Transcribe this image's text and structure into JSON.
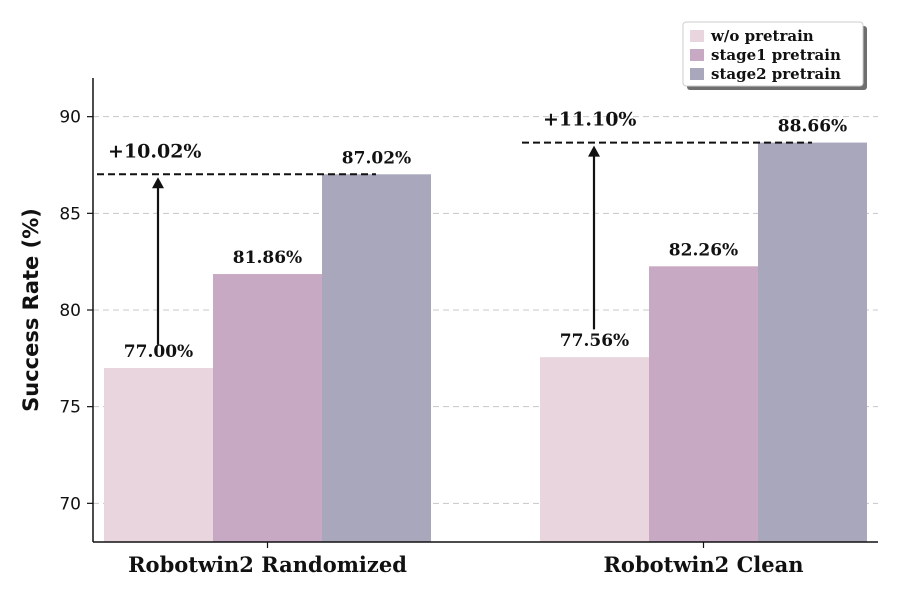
{
  "chart_data": {
    "type": "bar",
    "categories": [
      "Robotwin2 Randomized",
      "Robotwin2 Clean"
    ],
    "series": [
      {
        "name": "w/o pretrain",
        "values": [
          77.0,
          77.56
        ],
        "labels": [
          "77.00%",
          "77.56%"
        ],
        "color": "#e8d5de"
      },
      {
        "name": "stage1 pretrain",
        "values": [
          81.86,
          82.26
        ],
        "labels": [
          "81.86%",
          "82.26%"
        ],
        "color": "#c8a9c4"
      },
      {
        "name": "stage2 pretrain",
        "values": [
          87.02,
          88.66
        ],
        "labels": [
          "87.02%",
          "88.66%"
        ],
        "color": "#a8a7bc"
      }
    ],
    "ylabel": "Success Rate (%)",
    "xlabel": "",
    "ylim": [
      68,
      92
    ],
    "yticks": [
      70,
      75,
      80,
      85,
      90
    ],
    "grid": "horizontal dashed",
    "legend_position": "top-right",
    "annotations": [
      {
        "category": "Robotwin2 Randomized",
        "text": "+10.02%",
        "from": 78.2,
        "to": 87.02
      },
      {
        "category": "Robotwin2 Clean",
        "text": "+11.10%",
        "from": 79.0,
        "to": 88.66
      }
    ]
  }
}
